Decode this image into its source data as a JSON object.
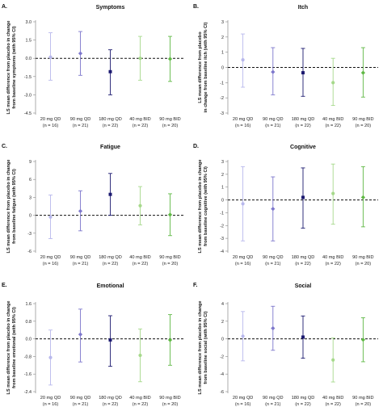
{
  "colors": [
    "#b8b8ec",
    "#7d77cc",
    "#1c1a70",
    "#a6d98b",
    "#5fb844"
  ],
  "chart_data": [
    {
      "label": "A.",
      "title": "Symptoms",
      "type": "scatter",
      "ylabel_lines": [
        "LS mean difference from placebo in change",
        "from baseline symptoms (with 95% CI)"
      ],
      "ylim": [
        -4.5,
        3
      ],
      "yticks": [
        3,
        1.5,
        0,
        -1.5,
        -3,
        -4.5
      ],
      "ytick_labels": [
        "3.0",
        "1.5",
        "0.0",
        "-1.5",
        "-3.0",
        "-4.5"
      ],
      "reference_line": 0,
      "categories": [
        [
          "20 mg QD",
          "(n = 16)"
        ],
        [
          "90 mg QD",
          "(n = 21)"
        ],
        [
          "180 mg QD",
          "(n = 22)"
        ],
        [
          "40 mg BID",
          "(n = 22)"
        ],
        [
          "90 mg BID",
          "(n = 20)"
        ]
      ],
      "series": [
        {
          "estimate": 0.1,
          "lower": -1.8,
          "upper": 2.1
        },
        {
          "estimate": 0.4,
          "lower": -1.4,
          "upper": 2.2
        },
        {
          "estimate": -1.1,
          "lower": -3.0,
          "upper": 0.7
        },
        {
          "estimate": 0.0,
          "lower": -1.8,
          "upper": 1.8
        },
        {
          "estimate": -0.05,
          "lower": -1.9,
          "upper": 1.8
        }
      ]
    },
    {
      "label": "B.",
      "title": "Itch",
      "type": "scatter",
      "ylabel_lines": [
        "LS mean difference from placebo",
        "in change from baseline itch (with 95% CI)"
      ],
      "ylim": [
        -3,
        3
      ],
      "yticks": [
        3,
        2,
        1,
        0,
        -1,
        -2,
        -3
      ],
      "ytick_labels": [
        "3",
        "2",
        "1",
        "0",
        "-1",
        "-2",
        "-3"
      ],
      "reference_line": 0,
      "categories": [
        [
          "20 mg QD",
          "(n = 16)"
        ],
        [
          "90 mg QD",
          "(n = 21)"
        ],
        [
          "180 mg QD",
          "(n = 22)"
        ],
        [
          "40 mg BID",
          "(n = 22)"
        ],
        [
          "90 mg BID",
          "(n = 20)"
        ]
      ],
      "series": [
        {
          "estimate": 0.5,
          "lower": -1.3,
          "upper": 2.2
        },
        {
          "estimate": -0.3,
          "lower": -1.8,
          "upper": 1.3
        },
        {
          "estimate": -0.35,
          "lower": -1.9,
          "upper": 1.25
        },
        {
          "estimate": -1.0,
          "lower": -2.5,
          "upper": 0.6
        },
        {
          "estimate": -0.35,
          "lower": -1.95,
          "upper": 1.3
        }
      ]
    },
    {
      "label": "C.",
      "title": "Fatigue",
      "type": "scatter",
      "ylabel_lines": [
        "LS mean difference from placebo in change",
        "from baseline fatigue (with 95% CI)"
      ],
      "ylim": [
        -6,
        9
      ],
      "yticks": [
        9,
        6,
        3,
        0,
        -3,
        -6
      ],
      "ytick_labels": [
        "9",
        "6",
        "3",
        "0",
        "-3",
        "-6"
      ],
      "reference_line": 0,
      "categories": [
        [
          "20 mg QD",
          "(n = 16)"
        ],
        [
          "90 mg QD",
          "(n = 21)"
        ],
        [
          "180 mg QD",
          "(n = 22)"
        ],
        [
          "40 mg BID",
          "(n = 22)"
        ],
        [
          "90 mg BID",
          "(n = 20)"
        ]
      ],
      "series": [
        {
          "estimate": -0.3,
          "lower": -3.9,
          "upper": 3.4
        },
        {
          "estimate": 0.7,
          "lower": -2.6,
          "upper": 4.1
        },
        {
          "estimate": 3.5,
          "lower": 0.0,
          "upper": 7.0
        },
        {
          "estimate": 1.6,
          "lower": -1.6,
          "upper": 4.8
        },
        {
          "estimate": 0.1,
          "lower": -3.4,
          "upper": 3.6
        }
      ]
    },
    {
      "label": "D.",
      "title": "Cognitive",
      "type": "scatter",
      "ylabel_lines": [
        "LS mean difference from placebo in change",
        "from baseline cognitive (with 95% CI)"
      ],
      "ylim": [
        -4,
        3
      ],
      "yticks": [
        3,
        2,
        1,
        0,
        -1,
        -2,
        -3,
        -4
      ],
      "ytick_labels": [
        "3",
        "2",
        "1",
        "0",
        "-1",
        "-2",
        "-3",
        "-4"
      ],
      "reference_line": 0,
      "categories": [
        [
          "20 mg QD",
          "(n = 16)"
        ],
        [
          "90 mg QD",
          "(n = 21)"
        ],
        [
          "180 mg QD",
          "(n = 22)"
        ],
        [
          "40 mg BID",
          "(n = 22)"
        ],
        [
          "90 mg BID",
          "(n = 20)"
        ]
      ],
      "series": [
        {
          "estimate": -0.3,
          "lower": -3.2,
          "upper": 2.6
        },
        {
          "estimate": -0.7,
          "lower": -3.2,
          "upper": 1.8
        },
        {
          "estimate": 0.2,
          "lower": -2.2,
          "upper": 2.5
        },
        {
          "estimate": 0.5,
          "lower": -1.9,
          "upper": 2.8
        },
        {
          "estimate": 0.2,
          "lower": -2.1,
          "upper": 2.6
        }
      ]
    },
    {
      "label": "E.",
      "title": "Emotional",
      "type": "scatter",
      "ylabel_lines": [
        "LS mean difference from placebo in change",
        "from baseline emotional (with 95% CI)"
      ],
      "ylim": [
        -2.4,
        1.6
      ],
      "yticks": [
        1.6,
        0.8,
        0,
        -0.8,
        -1.6,
        -2.4
      ],
      "ytick_labels": [
        "1.6",
        "0.8",
        "0.0",
        "-0.8",
        "-1.6",
        "-2.4"
      ],
      "reference_line": 0,
      "categories": [
        [
          "20 mg QD",
          "(n = 16)"
        ],
        [
          "90 mg QD",
          "(n = 21)"
        ],
        [
          "180 mg QD",
          "(n = 22)"
        ],
        [
          "40 mg BID",
          "(n = 22)"
        ],
        [
          "90 mg BID",
          "(n = 20)"
        ]
      ],
      "series": [
        {
          "estimate": -0.85,
          "lower": -2.1,
          "upper": 0.4
        },
        {
          "estimate": 0.2,
          "lower": -1.05,
          "upper": 1.35
        },
        {
          "estimate": -0.05,
          "lower": -1.25,
          "upper": 1.05
        },
        {
          "estimate": -0.75,
          "lower": -1.95,
          "upper": 0.45
        },
        {
          "estimate": -0.05,
          "lower": -1.2,
          "upper": 1.1
        }
      ]
    },
    {
      "label": "F.",
      "title": "Social",
      "type": "scatter",
      "ylabel_lines": [
        "LS mean difference from placebo in change",
        "from baseline social (with 95% CI)"
      ],
      "ylim": [
        -6,
        4
      ],
      "yticks": [
        4,
        2,
        0,
        -2,
        -4,
        -6
      ],
      "ytick_labels": [
        "4",
        "2",
        "0",
        "-2",
        "-4",
        "-6"
      ],
      "reference_line": 0,
      "categories": [
        [
          "20 mg QD",
          "(n = 16)"
        ],
        [
          "90 mg QD",
          "(n = 21)"
        ],
        [
          "180 mg QD",
          "(n = 22)"
        ],
        [
          "40 mg BID",
          "(n = 22)"
        ],
        [
          "90 mg BID",
          "(n = 20)"
        ]
      ],
      "series": [
        {
          "estimate": 0.3,
          "lower": -2.5,
          "upper": 3.1
        },
        {
          "estimate": 1.2,
          "lower": -1.3,
          "upper": 3.7
        },
        {
          "estimate": 0.2,
          "lower": -2.2,
          "upper": 2.6
        },
        {
          "estimate": -2.4,
          "lower": -4.9,
          "upper": 0.1
        },
        {
          "estimate": -0.1,
          "lower": -2.6,
          "upper": 2.4
        }
      ]
    }
  ]
}
